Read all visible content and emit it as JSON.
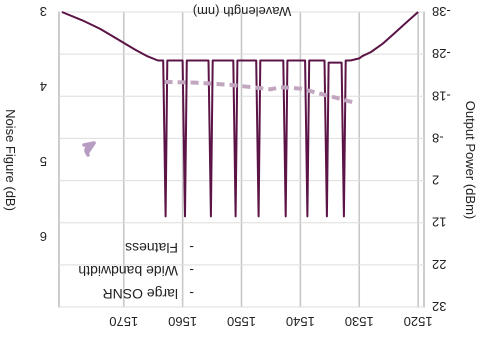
{
  "chart_data": {
    "type": "line",
    "rendered_rotation_deg": 180,
    "xlabel": "Wavelength (nm)",
    "x_ticks": [
      1520,
      1530,
      1540,
      1550,
      1560,
      1570
    ],
    "xlim": [
      1519,
      1581
    ],
    "y_left_label": "Output Power (dBm)",
    "y_left_ticks": [
      -38,
      -28,
      -18,
      -8,
      2,
      12,
      22,
      32
    ],
    "y_left_lim": [
      -38,
      32
    ],
    "y_right_label": "Noise Figure (dB)",
    "y_right_ticks": [
      3,
      4,
      5,
      6
    ],
    "y_right_lim": [
      3,
      6.93
    ],
    "grid": true,
    "series": [
      {
        "axis": "left",
        "style": "solid",
        "color": "#5c1346",
        "x": [
          1520,
          1522,
          1524,
          1526,
          1528,
          1529.5,
          1530.0,
          1531.5,
          1532.3,
          1532.6,
          1533.0,
          1534.8,
          1535.2,
          1535.5,
          1535.9,
          1538.1,
          1538.5,
          1538.8,
          1539.2,
          1541.8,
          1542.2,
          1542.5,
          1542.9,
          1546.4,
          1546.8,
          1547.1,
          1547.5,
          1550.3,
          1550.7,
          1551.0,
          1551.4,
          1554.5,
          1554.9,
          1555.2,
          1555.6,
          1558.9,
          1559.3,
          1559.6,
          1560.0,
          1562.2,
          1562.6,
          1562.9,
          1563.3,
          1564.2,
          1566,
          1568,
          1571,
          1574,
          1577,
          1580.5
        ],
        "y": [
          -38,
          -35.5,
          -33,
          -30.5,
          -28.5,
          -27.5,
          -27,
          -26.5,
          -26.5,
          10.5,
          -26,
          -26,
          -26,
          10.5,
          -26.5,
          -26.5,
          -26.5,
          10.5,
          -26.5,
          -26.5,
          -26.5,
          10.5,
          -26.5,
          -26.5,
          -26.5,
          10.5,
          -26.5,
          -26.5,
          -26.5,
          10.5,
          -26.5,
          -26.5,
          -26.5,
          10.5,
          -26.5,
          -26.5,
          -26.5,
          10.5,
          -26.5,
          -26.5,
          -26.5,
          10.5,
          -26.5,
          -26.5,
          -27.5,
          -29,
          -31.5,
          -34,
          -36,
          -38
        ]
      },
      {
        "axis": "right",
        "style": "dashed",
        "color": "#c2a6c0",
        "x": [
          1531.2,
          1535,
          1540,
          1543.5,
          1545,
          1552,
          1558,
          1563.7
        ],
        "y": [
          4.2,
          4.12,
          4.02,
          4.0,
          4.03,
          3.97,
          3.94,
          3.93
        ]
      }
    ],
    "annotations": [
      {
        "type": "arrow",
        "color": "#b79cc2"
      }
    ],
    "bullets": [
      "large OSNR",
      "Wide bandwidth",
      "Flatness"
    ]
  }
}
